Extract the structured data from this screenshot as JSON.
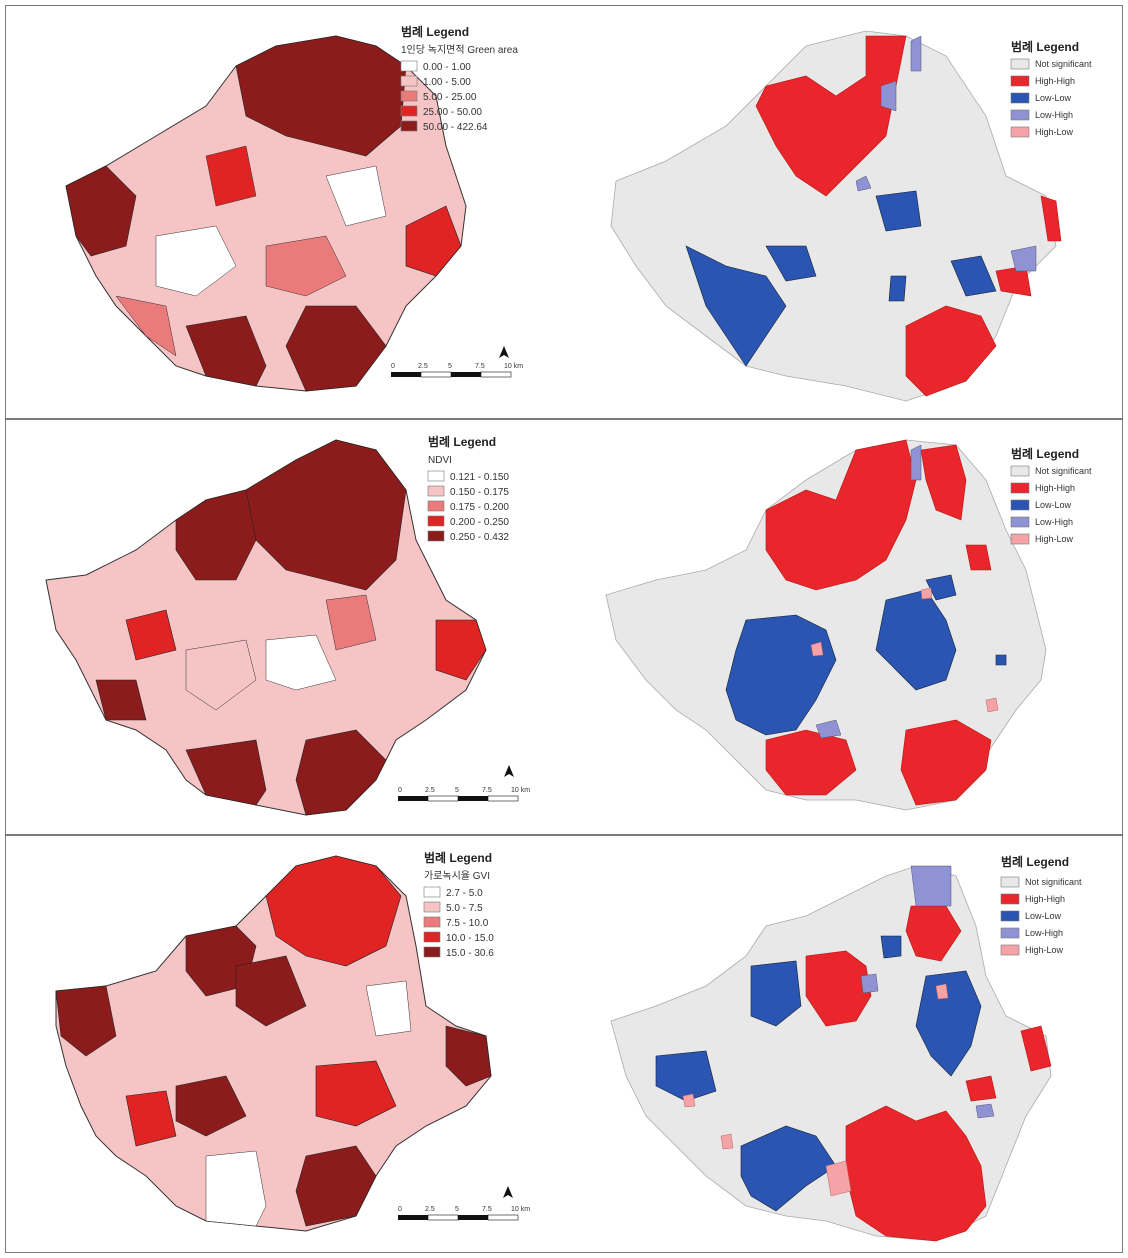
{
  "panels": [
    {
      "choropleth": {
        "legend_title": "범례 Legend",
        "variable": "1인당 녹지면적 Green area",
        "classes": [
          "0.00 - 1.00",
          "1.00 - 5.00",
          "5.00 - 25.00",
          "25.00 - 50.00",
          "50.00 - 422.64"
        ]
      },
      "lisa": {
        "legend_title": "범례 Legend",
        "classes": [
          "Not significant",
          "High-High",
          "Low-Low",
          "Low-High",
          "High-Low"
        ]
      }
    },
    {
      "choropleth": {
        "legend_title": "범례 Legend",
        "variable": "NDVI",
        "classes": [
          "0.121 - 0.150",
          "0.150 - 0.175",
          "0.175 - 0.200",
          "0.200 - 0.250",
          "0.250 - 0.432"
        ]
      },
      "lisa": {
        "legend_title": "범례 Legend",
        "classes": [
          "Not significant",
          "High-High",
          "Low-Low",
          "Low-High",
          "High-Low"
        ]
      }
    },
    {
      "choropleth": {
        "legend_title": "범례 Legend",
        "variable": "가로녹시율 GVI",
        "classes": [
          "2.7 - 5.0",
          "5.0 - 7.5",
          "7.5 - 10.0",
          "10.0 - 15.0",
          "15.0 - 30.6"
        ]
      },
      "lisa": {
        "legend_title": "범례 Legend",
        "classes": [
          "Not significant",
          "High-High",
          "Low-Low",
          "Low-High",
          "High-Low"
        ]
      }
    }
  ],
  "scale_bar": {
    "ticks": [
      "0",
      "2.5",
      "5",
      "7.5",
      "10 km"
    ]
  },
  "colors": {
    "choropleth": [
      "#ffffff",
      "#f6c4c4",
      "#eb7b7b",
      "#e02424",
      "#8c1c1c"
    ],
    "lisa": [
      "#e8e8e8",
      "#e8262b",
      "#2b55b2",
      "#8f92d3",
      "#f5a3a7"
    ]
  }
}
